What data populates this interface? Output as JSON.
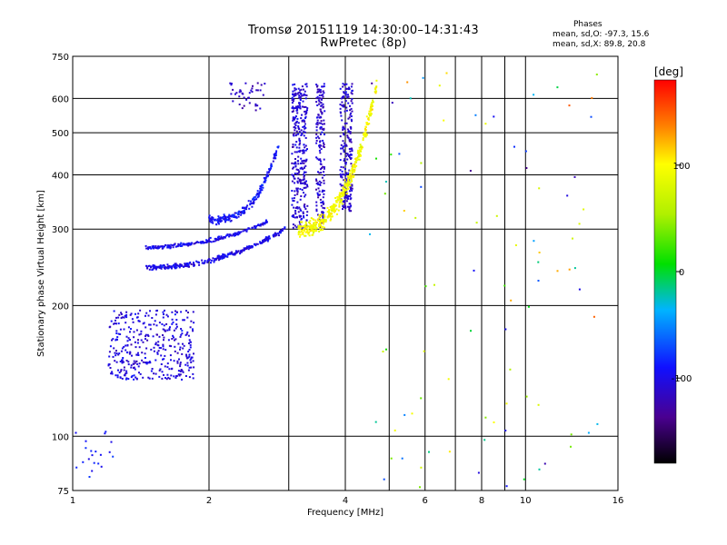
{
  "header": {
    "title_line1": "Tromsø 20151119 14:30:00–14:31:43",
    "title_line2": "RwPretec (8p)"
  },
  "stats": {
    "title": "Phases",
    "o_mode": "mean, sd,O: -97.3, 15.6",
    "x_mode": "mean, sd,X:  89.8, 20.8"
  },
  "colorbar": {
    "unit_label": "[deg]",
    "range": [
      -180,
      180
    ],
    "ticks": [
      {
        "value": 100,
        "label": "100"
      },
      {
        "value": 0,
        "label": "0"
      },
      {
        "value": -100,
        "label": "-100"
      }
    ]
  },
  "chart_data": {
    "type": "scatter",
    "title": "Tromsø 20151119 14:30:00–14:31:43",
    "subtitle": "RwPretec (8p)",
    "xlabel": "Frequency [MHz]",
    "ylabel": "Stationary phase Virtual Height [km]",
    "x_scale": "log",
    "y_scale": "log",
    "xlim": [
      1,
      16
    ],
    "ylim": [
      75,
      750
    ],
    "grid": true,
    "x_ticks": [
      {
        "value": 1,
        "label": "1"
      },
      {
        "value": 2,
        "label": "2"
      },
      {
        "value": 4,
        "label": "4"
      },
      {
        "value": 6,
        "label": "6"
      },
      {
        "value": 8,
        "label": "8"
      },
      {
        "value": 10,
        "label": "10"
      },
      {
        "value": 16,
        "label": "16"
      }
    ],
    "x_minor_grid": [
      3,
      5,
      7,
      9
    ],
    "y_ticks": [
      {
        "value": 75,
        "label": "75"
      },
      {
        "value": 100,
        "label": "100"
      },
      {
        "value": 200,
        "label": "200"
      },
      {
        "value": 300,
        "label": "300"
      },
      {
        "value": 400,
        "label": "400"
      },
      {
        "value": 500,
        "label": "500"
      },
      {
        "value": 600,
        "label": "600"
      },
      {
        "value": 750,
        "label": "750"
      }
    ],
    "color_variable": "phase (deg)",
    "traces": [
      {
        "name": "E / low-F echoes",
        "phase": -105,
        "fmin": 1.2,
        "fmax": 1.85,
        "hmin": 135,
        "hmax": 195,
        "kind": "cloud",
        "count": 380,
        "spread": 0.02
      },
      {
        "name": "F1 O trace lower",
        "phase": -100,
        "fmin": 1.45,
        "fmax": 2.95,
        "h0": 245,
        "h1": 300,
        "curv": 2.2,
        "kind": "curve",
        "count": 300,
        "spread": 0.012
      },
      {
        "name": "F1 O trace upper",
        "phase": -100,
        "fmin": 1.45,
        "fmax": 2.7,
        "h0": 272,
        "h1": 312,
        "curv": 2.0,
        "kind": "curve",
        "count": 200,
        "spread": 0.01
      },
      {
        "name": "F2 O trace",
        "phase": -92,
        "fmin": 2.0,
        "fmax": 2.85,
        "h0": 315,
        "h1": 470,
        "curv": 3.0,
        "kind": "curve",
        "count": 200,
        "spread": 0.02
      },
      {
        "name": "F2 O band 1",
        "phase": -108,
        "fmin": 3.05,
        "fmax": 3.3,
        "hmin": 300,
        "hmax": 650,
        "kind": "band",
        "count": 320,
        "spread": 0.0
      },
      {
        "name": "F2 O band 2",
        "phase": -112,
        "fmin": 3.45,
        "fmax": 3.6,
        "hmin": 300,
        "hmax": 650,
        "kind": "band",
        "count": 180,
        "spread": 0.0
      },
      {
        "name": "F2 O band 3",
        "phase": -110,
        "fmin": 3.9,
        "fmax": 4.15,
        "hmin": 330,
        "hmax": 650,
        "kind": "band",
        "count": 220,
        "spread": 0.0
      },
      {
        "name": "F2 X trace",
        "phase": 95,
        "fmin": 3.15,
        "fmax": 4.7,
        "h0": 300,
        "h1": 650,
        "curv": 2.5,
        "kind": "curve",
        "count": 420,
        "spread": 0.04
      },
      {
        "name": "spread high",
        "phase": -115,
        "fmin": 2.2,
        "fmax": 2.7,
        "hmin": 560,
        "hmax": 660,
        "kind": "cloud",
        "count": 40,
        "spread": 0.0
      },
      {
        "name": "low-range echoes",
        "phase": -90,
        "fmin": 1.0,
        "fmax": 1.25,
        "hmin": 80,
        "hmax": 105,
        "kind": "cloud",
        "count": 20,
        "spread": 0.0
      },
      {
        "name": "scattered noise",
        "phase": 40,
        "fmin": 4.5,
        "fmax": 14.5,
        "hmin": 75,
        "hmax": 700,
        "kind": "noise",
        "count": 90,
        "spread": 0.0
      }
    ]
  }
}
